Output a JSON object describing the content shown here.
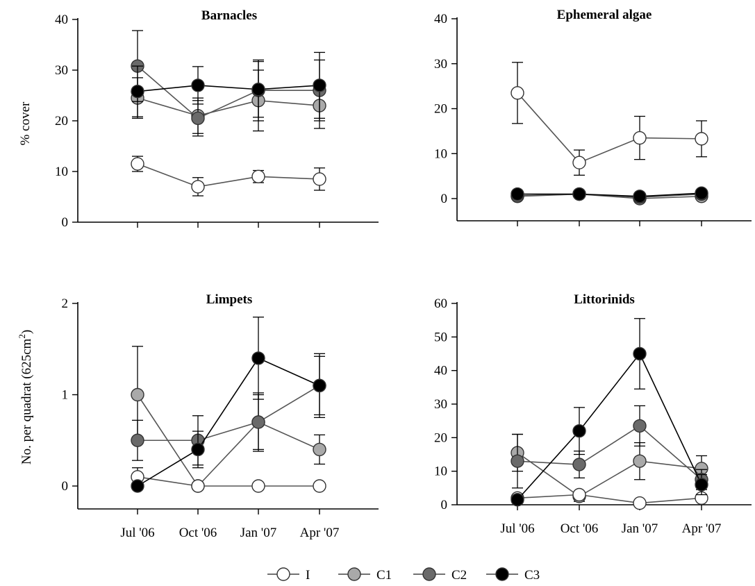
{
  "colors": {
    "I": "#ffffff",
    "C1": "#a9a9a9",
    "C2": "#6a6a6a",
    "C3": "#000000"
  },
  "x_tick_labels": [
    "Jul '06",
    "Oct '06",
    "Jan '07",
    "Apr '07"
  ],
  "y_labels": {
    "top": "% cover",
    "bottom": "No. per quadrat (625cm",
    "bottom_sup": "2",
    "bottom_close": ")"
  },
  "legend": [
    {
      "name": "I"
    },
    {
      "name": "C1"
    },
    {
      "name": "C2"
    },
    {
      "name": "C3"
    }
  ],
  "chart_data": [
    {
      "type": "line",
      "title": "Barnacles",
      "ylabel": "% cover",
      "ylim": [
        0,
        40
      ],
      "yticks": [
        0,
        10,
        20,
        30,
        40
      ],
      "categories": [
        "Jul '06",
        "Oct '06",
        "Jan '07",
        "Apr '07"
      ],
      "series": [
        {
          "name": "I",
          "values": [
            11.5,
            7,
            9,
            8.5
          ],
          "err": [
            1.5,
            1.8,
            1.2,
            2.2
          ]
        },
        {
          "name": "C1",
          "values": [
            24.5,
            21,
            24,
            23
          ],
          "err": [
            4,
            3.5,
            6,
            4.5
          ]
        },
        {
          "name": "C2",
          "values": [
            30.8,
            20.5,
            26,
            26
          ],
          "err": [
            7,
            3.5,
            6,
            6
          ]
        },
        {
          "name": "C3",
          "values": [
            25.8,
            27,
            26.2,
            27
          ],
          "err": [
            5,
            3.7,
            5.5,
            6.5
          ]
        }
      ]
    },
    {
      "type": "line",
      "title": "Ephemeral algae",
      "ylabel": "",
      "ylim": [
        -5,
        40
      ],
      "yticks": [
        0,
        10,
        20,
        30,
        40
      ],
      "categories": [
        "Jul '06",
        "Oct '06",
        "Jan '07",
        "Apr '07"
      ],
      "series": [
        {
          "name": "I",
          "values": [
            23.5,
            8,
            13.5,
            13.3
          ],
          "err": [
            6.8,
            2.8,
            4.8,
            4
          ]
        },
        {
          "name": "C1",
          "values": [
            0.5,
            1,
            0,
            0.5
          ],
          "err": [
            0.5,
            0.5,
            0.3,
            0.5
          ]
        },
        {
          "name": "C2",
          "values": [
            0.6,
            1,
            0.3,
            1
          ],
          "err": [
            0.5,
            0.5,
            0.3,
            0.5
          ]
        },
        {
          "name": "C3",
          "values": [
            1,
            1,
            0.5,
            1.2
          ],
          "err": [
            0.5,
            0.5,
            0.3,
            0.5
          ]
        }
      ]
    },
    {
      "type": "line",
      "title": "Limpets",
      "ylabel": "No. per quadrat (625cm2)",
      "ylim": [
        -0.25,
        2
      ],
      "yticks": [
        0,
        1,
        2
      ],
      "categories": [
        "Jul '06",
        "Oct '06",
        "Jan '07",
        "Apr '07"
      ],
      "series": [
        {
          "name": "I",
          "values": [
            0.1,
            0,
            0,
            0
          ],
          "err": [
            0.1,
            0,
            0,
            0
          ]
        },
        {
          "name": "C1",
          "values": [
            1,
            0,
            0.7,
            0.4
          ],
          "err": [
            0.53,
            0,
            0.3,
            0.16
          ]
        },
        {
          "name": "C2",
          "values": [
            0.5,
            0.5,
            0.7,
            1.1
          ],
          "err": [
            0.22,
            0.27,
            0.32,
            0.32
          ]
        },
        {
          "name": "C3",
          "values": [
            0,
            0.4,
            1.4,
            1.1
          ],
          "err": [
            0,
            0.2,
            0.45,
            0.35
          ]
        }
      ]
    },
    {
      "type": "line",
      "title": "Littorinids",
      "ylabel": "",
      "ylim": [
        0,
        60
      ],
      "yticks": [
        0,
        10,
        20,
        30,
        40,
        50,
        60
      ],
      "categories": [
        "Jul '06",
        "Oct '06",
        "Jan '07",
        "Apr '07"
      ],
      "series": [
        {
          "name": "I",
          "values": [
            2,
            3,
            0.5,
            2
          ],
          "err": [
            1,
            1,
            0.5,
            1
          ]
        },
        {
          "name": "C1",
          "values": [
            15.5,
            2.5,
            13,
            10.8
          ],
          "err": [
            5.5,
            1.5,
            5.5,
            3.8
          ]
        },
        {
          "name": "C2",
          "values": [
            13,
            12,
            23.5,
            7.5
          ],
          "err": [
            8,
            4,
            6,
            3
          ]
        },
        {
          "name": "C3",
          "values": [
            1.5,
            22,
            45,
            6
          ],
          "err": [
            1,
            7,
            10.5,
            3
          ]
        }
      ]
    }
  ]
}
